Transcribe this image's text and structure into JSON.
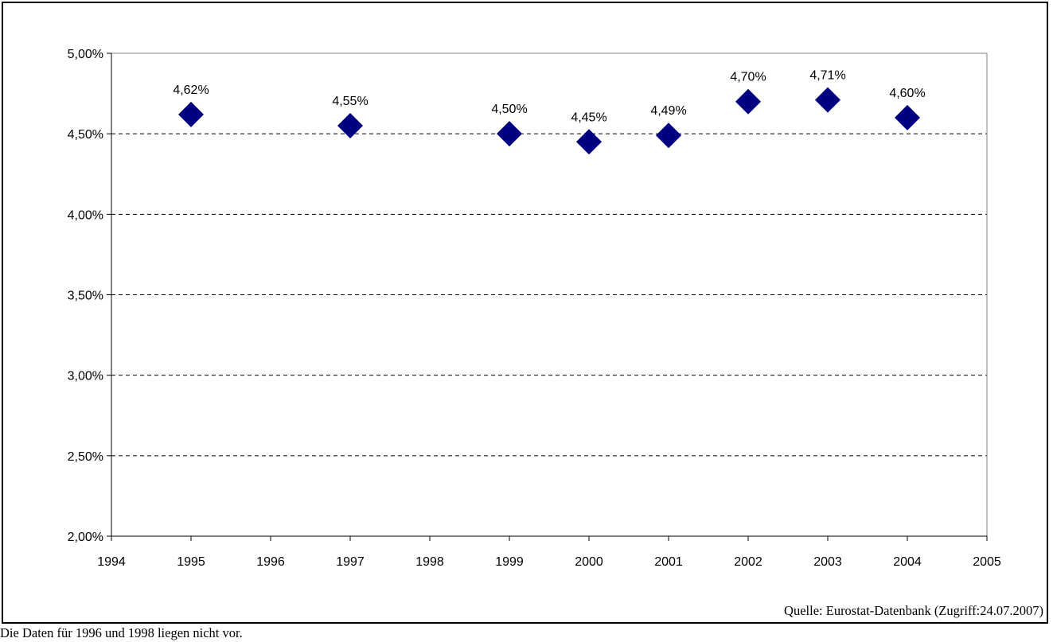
{
  "chart_data": {
    "type": "scatter",
    "title": "",
    "xlabel": "",
    "ylabel": "",
    "xlim": [
      1994,
      2005
    ],
    "ylim": [
      0.02,
      0.05
    ],
    "x_ticks": [
      "1994",
      "1995",
      "1996",
      "1997",
      "1998",
      "1999",
      "2000",
      "2001",
      "2002",
      "2003",
      "2004",
      "2005"
    ],
    "y_ticks": [
      "2,00%",
      "2,50%",
      "3,00%",
      "3,50%",
      "4,00%",
      "4,50%",
      "5,00%"
    ],
    "grid": "horizontal-dashed",
    "marker": "diamond",
    "series": [
      {
        "x": [
          1995,
          1997,
          1999,
          2000,
          2001,
          2002,
          2003,
          2004
        ],
        "y": [
          0.0462,
          0.0455,
          0.045,
          0.0445,
          0.0449,
          0.047,
          0.0471,
          0.046
        ],
        "labels": [
          "4,62%",
          "4,55%",
          "4,50%",
          "4,45%",
          "4,49%",
          "4,70%",
          "4,71%",
          "4,60%"
        ],
        "color": "#000080"
      }
    ]
  },
  "notes": {
    "source": "Quelle: Eurostat-Datenbank (Zugriff:24.07.2007)",
    "footnote": "Die Daten für 1996 und 1998 liegen nicht vor."
  }
}
